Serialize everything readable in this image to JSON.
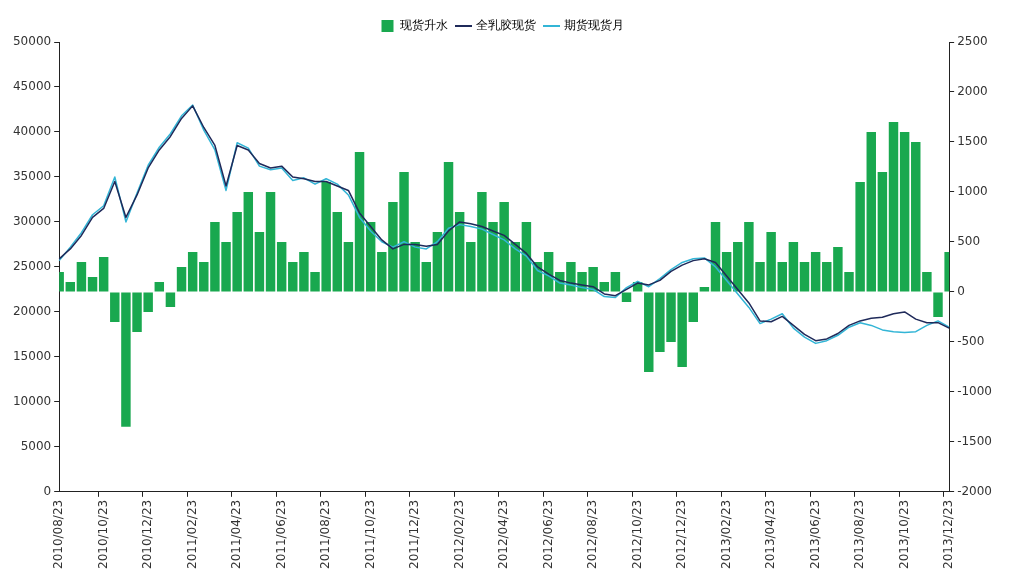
{
  "chart_data": {
    "type": "bar",
    "categories": [
      "2010/08/23",
      null,
      null,
      null,
      "2010/10/23",
      null,
      null,
      null,
      "2010/12/23",
      null,
      null,
      null,
      "2011/02/23",
      null,
      null,
      null,
      "2011/04/23",
      null,
      null,
      null,
      "2011/06/23",
      null,
      null,
      null,
      "2011/08/23",
      null,
      null,
      null,
      "2011/10/23",
      null,
      null,
      null,
      "2011/12/23",
      null,
      null,
      null,
      "2012/02/23",
      null,
      null,
      null,
      "2012/04/23",
      null,
      null,
      null,
      "2012/06/23",
      null,
      null,
      null,
      "2012/08/23",
      null,
      null,
      null,
      "2012/10/23",
      null,
      null,
      null,
      "2012/12/23",
      null,
      null,
      null,
      "2013/02/23",
      null,
      null,
      null,
      "2013/04/23",
      null,
      null,
      null,
      "2013/06/23",
      null,
      null,
      null,
      "2013/08/23",
      null,
      null,
      null,
      "2013/10/23",
      null,
      null,
      null,
      "2013/12/23"
    ],
    "series": [
      {
        "name": "现货升水",
        "axis": "y2",
        "color": "#19a84f",
        "values": [
          200,
          100,
          300,
          150,
          350,
          -300,
          -1350,
          -400,
          -200,
          100,
          -150,
          250,
          400,
          300,
          700,
          500,
          800,
          1000,
          600,
          1000,
          500,
          300,
          400,
          200,
          1100,
          800,
          500,
          1400,
          700,
          400,
          900,
          1200,
          500,
          300,
          600,
          1300,
          800,
          500,
          1000,
          700,
          900,
          500,
          700,
          300,
          400,
          200,
          300,
          200,
          250,
          100,
          200,
          -100,
          100,
          -800,
          -600,
          -500,
          -750,
          -300,
          50,
          700,
          400,
          500,
          700,
          300,
          600,
          300,
          500,
          300,
          400,
          300,
          450,
          200,
          1100,
          1600,
          1200,
          1700,
          1600,
          1500,
          200,
          -250,
          400
        ]
      },
      {
        "name": "全乳胶现货",
        "type": "line",
        "color": "#1f2a5a",
        "values": [
          25900,
          27000,
          28500,
          30500,
          31500,
          34500,
          30500,
          33000,
          36000,
          38000,
          39500,
          41500,
          42900,
          40500,
          38500,
          34000,
          38500,
          38000,
          36500,
          36000,
          36200,
          35000,
          34800,
          34500,
          34500,
          34000,
          33500,
          31000,
          29500,
          28000,
          27000,
          27500,
          27500,
          27300,
          27500,
          29000,
          30000,
          29800,
          29500,
          29000,
          28500,
          27500,
          26500,
          25000,
          24200,
          23500,
          23200,
          23000,
          22800,
          22000,
          21800,
          22500,
          23200,
          23000,
          23500,
          24500,
          25200,
          25700,
          25900,
          25500,
          24000,
          22500,
          21000,
          19000,
          18900,
          19500,
          18500,
          17500,
          16800,
          17000,
          17600,
          18500,
          19000,
          19300,
          19400,
          19800,
          20000,
          19200,
          18800,
          18800,
          18200
        ]
      },
      {
        "name": "期货现货月",
        "type": "line",
        "color": "#33b5d6",
        "values": [
          25700,
          27200,
          28800,
          30800,
          31800,
          35000,
          30000,
          33200,
          36300,
          38300,
          39800,
          41800,
          43000,
          40200,
          38000,
          33500,
          38800,
          38200,
          36200,
          35800,
          36000,
          34600,
          34900,
          34200,
          34800,
          34200,
          33000,
          30500,
          29000,
          27800,
          27200,
          27800,
          27200,
          27000,
          27800,
          29300,
          29700,
          29500,
          29200,
          28600,
          28000,
          27000,
          26200,
          24600,
          24000,
          23200,
          23000,
          22700,
          22500,
          21700,
          21600,
          22700,
          23400,
          22800,
          23700,
          24700,
          25500,
          25900,
          26000,
          25000,
          23500,
          22000,
          20500,
          18700,
          19200,
          19800,
          18200,
          17200,
          16500,
          16800,
          17400,
          18300,
          18800,
          18500,
          18000,
          17800,
          17700,
          17800,
          18500,
          19000,
          18300
        ]
      }
    ],
    "ylim": [
      0,
      50000
    ],
    "yticks": [
      0,
      5000,
      10000,
      15000,
      20000,
      25000,
      30000,
      35000,
      40000,
      45000,
      50000
    ],
    "y2lim": [
      -2000,
      2500
    ],
    "y2ticks": [
      -2000,
      -1500,
      -1000,
      -500,
      0,
      500,
      1000,
      1500,
      2000,
      2500
    ],
    "legend": "top",
    "grid": false
  }
}
